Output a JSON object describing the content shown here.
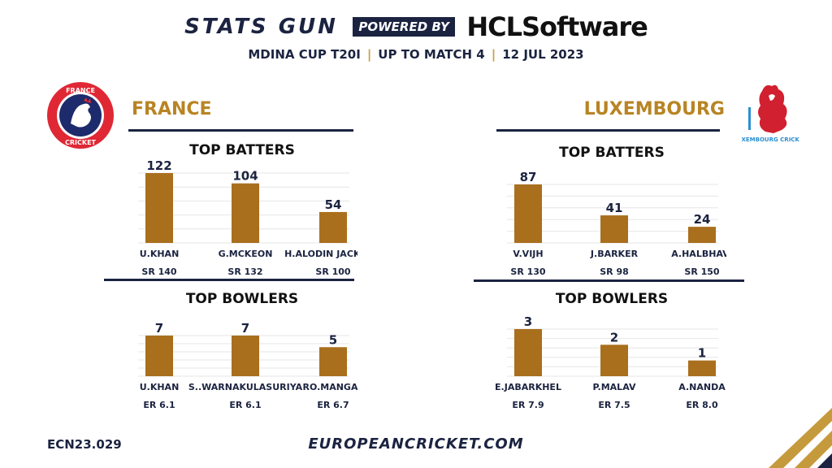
{
  "header": {
    "brand": "STATS GUN",
    "powered_by": "POWERED BY",
    "sponsor": "HCLSoftware",
    "event": "MDINA CUP T20I",
    "scope": "UP TO MATCH 4",
    "date": "12 JUL 2023"
  },
  "teams": {
    "left": {
      "name": "FRANCE",
      "logo_top": "FRANCE",
      "logo_bottom": "CRICKET"
    },
    "right": {
      "name": "LUXEMBOURG",
      "logo_text": "LUXEMBOURG CRICKET"
    }
  },
  "footer": {
    "code": "ECN23.029",
    "url": "EUROPEANCRICKET.COM"
  },
  "colors": {
    "bar": "#a96f1d",
    "navy": "#1b2340",
    "gold": "#b88424",
    "grid": "#e6e6e6"
  },
  "chart_data": [
    {
      "type": "bar",
      "title": "TOP BATTERS",
      "team": "FRANCE",
      "categories": [
        "U.KHAN",
        "G.MCKEON",
        "H.ALODIN JACKSON"
      ],
      "values": [
        122,
        104,
        54
      ],
      "sublabels": [
        "SR 140",
        "SR 132",
        "SR 100"
      ]
    },
    {
      "type": "bar",
      "title": "TOP BATTERS",
      "team": "LUXEMBOURG",
      "categories": [
        "V.VIJH",
        "J.BARKER",
        "A.HALBHAVI"
      ],
      "values": [
        87,
        41,
        24
      ],
      "sublabels": [
        "SR 130",
        "SR 98",
        "SR 150"
      ]
    },
    {
      "type": "bar",
      "title": "TOP BOWLERS",
      "team": "FRANCE",
      "categories": [
        "U.KHAN",
        "S..WARNAKULASURIYA",
        "RO.MANGAL"
      ],
      "values": [
        7,
        7,
        5
      ],
      "sublabels": [
        "ER 6.1",
        "ER 6.1",
        "ER 6.7"
      ]
    },
    {
      "type": "bar",
      "title": "TOP BOWLERS",
      "team": "LUXEMBOURG",
      "categories": [
        "E.JABARKHEL",
        "P.MALAV",
        "A.NANDA"
      ],
      "values": [
        3,
        2,
        1
      ],
      "sublabels": [
        "ER 7.9",
        "ER 7.5",
        "ER 8.0"
      ]
    }
  ]
}
